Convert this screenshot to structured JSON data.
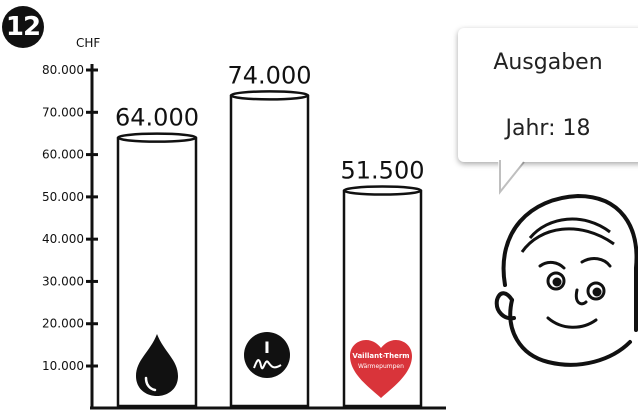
{
  "slide_number": "12",
  "bubble": {
    "line1": "Ausgaben",
    "line2": "Jahr: 18"
  },
  "chart_data": {
    "type": "bar",
    "title": "",
    "xlabel": "",
    "ylabel": "CHF",
    "ylim": [
      0,
      85000
    ],
    "yticks": [
      10000,
      20000,
      30000,
      40000,
      50000,
      60000,
      70000,
      80000
    ],
    "ytick_labels": [
      "10.000",
      "20.000",
      "30.000",
      "40.000",
      "50.000",
      "60.000",
      "70.000",
      "80.000"
    ],
    "categories": [
      "oil-drop-icon",
      "info-sign-icon",
      "heating-logo-icon"
    ],
    "values": [
      64000,
      74000,
      51500
    ],
    "value_labels": [
      "64.000",
      "74.000",
      "51.500"
    ],
    "grid": false,
    "logo_text": [
      "Vaillant-Therm",
      "Wärmepumpen"
    ],
    "colors": {
      "ink": "#111111",
      "logo_red": "#d9343a"
    }
  }
}
